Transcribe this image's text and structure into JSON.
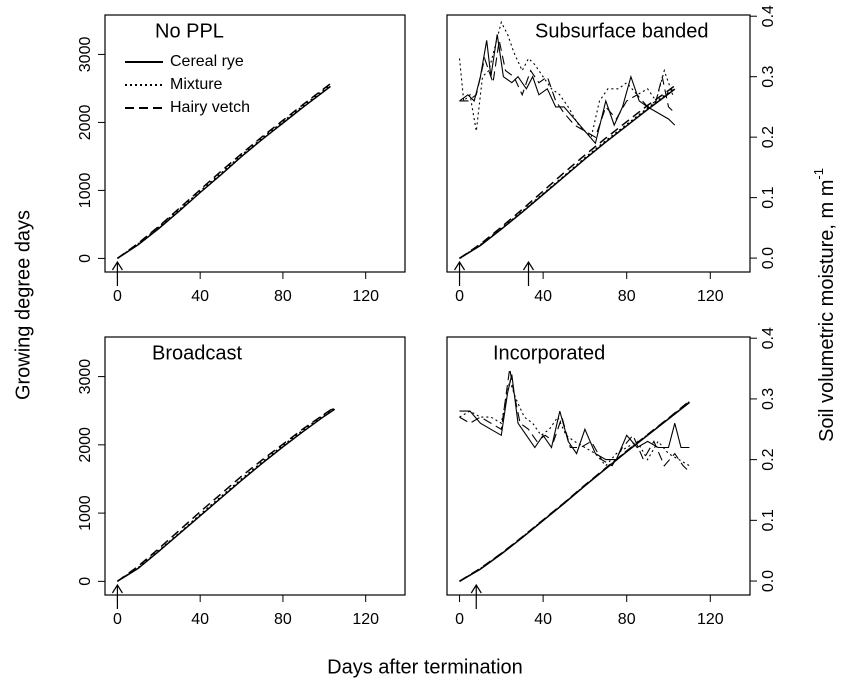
{
  "xlabel": "Days after termination",
  "ylabel": "Growing degree days",
  "y2label": "Soil volumetric moisture, m m",
  "y2label_superscript": "-1",
  "chart_data": [
    {
      "type": "line",
      "title": "No PPL",
      "legend": "top-left",
      "xlim": [
        -6,
        139
      ],
      "ylim": [
        -200,
        3580
      ],
      "xticks": [
        0,
        40,
        80,
        120
      ],
      "yticks": [
        0,
        1000,
        2000,
        3000
      ],
      "arrows": [
        0
      ],
      "series": [
        {
          "name": "Cereal rye",
          "dash": "solid",
          "color": "#000000",
          "x": [
            0,
            10,
            20,
            30,
            40,
            50,
            60,
            70,
            80,
            90,
            100,
            103
          ],
          "values": [
            0,
            200,
            440,
            700,
            970,
            1230,
            1500,
            1750,
            1990,
            2230,
            2460,
            2530
          ]
        },
        {
          "name": "Mixture",
          "dash": "dotted",
          "color": "#000000",
          "x": [
            0,
            10,
            20,
            30,
            40,
            50,
            60,
            70,
            80,
            90,
            100,
            103
          ],
          "values": [
            0,
            210,
            460,
            720,
            990,
            1250,
            1520,
            1770,
            2010,
            2250,
            2480,
            2550
          ]
        },
        {
          "name": "Hairy vetch",
          "dash": "dashed",
          "color": "#000000",
          "x": [
            0,
            10,
            20,
            30,
            40,
            50,
            60,
            70,
            80,
            90,
            100,
            103
          ],
          "values": [
            0,
            220,
            470,
            740,
            1010,
            1280,
            1540,
            1790,
            2030,
            2270,
            2500,
            2570
          ]
        }
      ]
    },
    {
      "type": "line",
      "title": "Subsurface banded",
      "xlim": [
        -6,
        139
      ],
      "ylim": [
        -200,
        3580
      ],
      "xticks": [
        0,
        40,
        80,
        120
      ],
      "y2lim": [
        -0.023,
        0.402
      ],
      "y2ticks": [
        {
          "value": 0,
          "label": "0.0"
        },
        0.1,
        0.2,
        0.3,
        0.4
      ],
      "arrows": [
        0,
        33
      ],
      "series": [
        {
          "name": "Cereal rye",
          "dash": "solid",
          "color": "#000000",
          "x": [
            0,
            10,
            20,
            30,
            40,
            50,
            60,
            70,
            80,
            90,
            100,
            103
          ],
          "values": [
            0,
            190,
            430,
            680,
            940,
            1200,
            1460,
            1710,
            1950,
            2190,
            2420,
            2490
          ]
        },
        {
          "name": "Mixture",
          "dash": "dotted",
          "color": "#000000",
          "x": [
            0,
            10,
            20,
            30,
            40,
            50,
            60,
            70,
            80,
            90,
            100,
            103
          ],
          "values": [
            0,
            200,
            440,
            690,
            950,
            1210,
            1480,
            1730,
            1970,
            2210,
            2440,
            2510
          ]
        },
        {
          "name": "Hairy vetch",
          "dash": "dashed",
          "color": "#000000",
          "x": [
            0,
            10,
            20,
            30,
            40,
            50,
            60,
            70,
            80,
            90,
            100,
            103
          ],
          "values": [
            0,
            210,
            460,
            720,
            990,
            1260,
            1520,
            1770,
            2010,
            2250,
            2470,
            2540
          ]
        },
        {
          "name": "Cereal rye",
          "dash": "solid",
          "color": "#000000",
          "axis": "y2",
          "x": [
            0,
            4,
            7,
            10,
            13,
            15,
            18,
            21,
            25,
            28,
            32,
            35,
            38,
            42,
            46,
            50,
            55,
            60,
            65,
            70,
            74,
            78,
            82,
            86,
            90,
            95,
            100,
            103
          ],
          "values": [
            0.26,
            0.27,
            0.26,
            0.3,
            0.36,
            0.3,
            0.37,
            0.3,
            0.29,
            0.3,
            0.28,
            0.3,
            0.27,
            0.28,
            0.25,
            0.25,
            0.23,
            0.21,
            0.19,
            0.26,
            0.22,
            0.25,
            0.3,
            0.26,
            0.25,
            0.24,
            0.23,
            0.22
          ]
        },
        {
          "name": "Mixture",
          "dash": "dotted",
          "color": "#000000",
          "axis": "y2",
          "x": [
            0,
            2,
            5,
            8,
            11,
            14,
            17,
            20,
            23,
            26,
            30,
            33,
            36,
            40,
            44,
            48,
            52,
            57,
            63,
            67,
            71,
            76,
            80,
            85,
            90,
            94,
            98,
            102
          ],
          "values": [
            0.33,
            0.26,
            0.27,
            0.21,
            0.3,
            0.31,
            0.35,
            0.39,
            0.37,
            0.34,
            0.31,
            0.33,
            0.32,
            0.3,
            0.28,
            0.27,
            0.25,
            0.22,
            0.2,
            0.26,
            0.28,
            0.28,
            0.29,
            0.27,
            0.28,
            0.26,
            0.31,
            0.27
          ]
        },
        {
          "name": "Hairy vetch",
          "dash": "dashed",
          "color": "#000000",
          "axis": "y2",
          "x": [
            0,
            4,
            8,
            12,
            16,
            19,
            22,
            26,
            30,
            34,
            38,
            42,
            46,
            50,
            55,
            60,
            65,
            70,
            75,
            80,
            85,
            90,
            94,
            97,
            100,
            103
          ],
          "values": [
            0.26,
            0.26,
            0.27,
            0.33,
            0.29,
            0.36,
            0.31,
            0.3,
            0.27,
            0.31,
            0.29,
            0.3,
            0.26,
            0.24,
            0.22,
            0.21,
            0.2,
            0.25,
            0.23,
            0.26,
            0.27,
            0.25,
            0.26,
            0.3,
            0.25,
            0.24
          ]
        }
      ]
    },
    {
      "type": "line",
      "title": "Broadcast",
      "xlim": [
        -6,
        139
      ],
      "ylim": [
        -200,
        3580
      ],
      "xticks": [
        0,
        40,
        80,
        120
      ],
      "yticks": [
        0,
        1000,
        2000,
        3000
      ],
      "arrows": [
        0
      ],
      "series": [
        {
          "name": "Cereal rye",
          "dash": "solid",
          "color": "#000000",
          "x": [
            0,
            10,
            20,
            30,
            40,
            50,
            60,
            70,
            80,
            90,
            100,
            105
          ],
          "values": [
            0,
            190,
            440,
            700,
            960,
            1220,
            1480,
            1730,
            1970,
            2200,
            2420,
            2520
          ]
        },
        {
          "name": "Mixture",
          "dash": "dotted",
          "color": "#000000",
          "x": [
            0,
            10,
            20,
            30,
            40,
            50,
            60,
            70,
            80,
            90,
            100,
            105
          ],
          "values": [
            0,
            200,
            450,
            710,
            980,
            1240,
            1500,
            1750,
            1990,
            2220,
            2440,
            2540
          ]
        },
        {
          "name": "Hairy vetch",
          "dash": "dashed",
          "color": "#000000",
          "x": [
            0,
            10,
            20,
            30,
            40,
            50,
            60,
            70,
            80,
            90,
            100,
            105
          ],
          "values": [
            0,
            220,
            480,
            750,
            1020,
            1280,
            1540,
            1780,
            2010,
            2240,
            2450,
            2550
          ]
        }
      ]
    },
    {
      "type": "line",
      "title": "Incorporated",
      "xlim": [
        -6,
        139
      ],
      "ylim": [
        -200,
        3580
      ],
      "xticks": [
        0,
        40,
        80,
        120
      ],
      "y2lim": [
        -0.023,
        0.402
      ],
      "y2ticks": [
        {
          "value": 0,
          "label": "0.0"
        },
        0.1,
        0.2,
        0.3,
        0.4
      ],
      "arrows": [
        8
      ],
      "series": [
        {
          "name": "Cereal rye",
          "dash": "solid",
          "color": "#000000",
          "x": [
            0,
            10,
            20,
            30,
            40,
            50,
            60,
            70,
            80,
            90,
            100,
            110
          ],
          "values": [
            0,
            180,
            400,
            640,
            890,
            1140,
            1400,
            1650,
            1900,
            2140,
            2380,
            2620
          ]
        },
        {
          "name": "Mixture",
          "dash": "dotted",
          "color": "#000000",
          "x": [
            0,
            10,
            20,
            30,
            40,
            50,
            60,
            70,
            80,
            90,
            100,
            110
          ],
          "values": [
            0,
            185,
            405,
            645,
            895,
            1145,
            1405,
            1655,
            1905,
            2145,
            2385,
            2630
          ]
        },
        {
          "name": "Hairy vetch",
          "dash": "dashed",
          "color": "#000000",
          "x": [
            0,
            10,
            20,
            30,
            40,
            50,
            60,
            70,
            80,
            90,
            100,
            110
          ],
          "values": [
            0,
            190,
            410,
            650,
            900,
            1150,
            1410,
            1660,
            1910,
            2150,
            2390,
            2640
          ]
        },
        {
          "name": "Cereal rye",
          "dash": "solid",
          "color": "#000000",
          "axis": "y2",
          "x": [
            0,
            5,
            10,
            15,
            20,
            23,
            25,
            28,
            32,
            36,
            40,
            44,
            48,
            52,
            56,
            60,
            65,
            70,
            75,
            80,
            85,
            90,
            95,
            100,
            103,
            106,
            110
          ],
          "values": [
            0.28,
            0.28,
            0.26,
            0.25,
            0.24,
            0.31,
            0.34,
            0.26,
            0.24,
            0.22,
            0.24,
            0.22,
            0.28,
            0.23,
            0.21,
            0.25,
            0.21,
            0.2,
            0.2,
            0.24,
            0.22,
            0.23,
            0.22,
            0.22,
            0.26,
            0.22,
            0.22
          ]
        },
        {
          "name": "Mixture",
          "dash": "dotted",
          "color": "#000000",
          "axis": "y2",
          "x": [
            0,
            5,
            10,
            15,
            20,
            24,
            27,
            31,
            35,
            39,
            43,
            47,
            51,
            55,
            60,
            65,
            70,
            75,
            80,
            85,
            90,
            95,
            100,
            105,
            110
          ],
          "values": [
            0.27,
            0.28,
            0.27,
            0.27,
            0.26,
            0.33,
            0.3,
            0.27,
            0.26,
            0.24,
            0.25,
            0.27,
            0.24,
            0.23,
            0.22,
            0.21,
            0.19,
            0.21,
            0.22,
            0.23,
            0.2,
            0.23,
            0.21,
            0.2,
            0.19
          ]
        },
        {
          "name": "Hairy vetch",
          "dash": "dashed",
          "color": "#000000",
          "axis": "y2",
          "x": [
            0,
            5,
            10,
            15,
            20,
            24,
            26,
            29,
            33,
            37,
            41,
            45,
            49,
            53,
            58,
            63,
            68,
            73,
            78,
            83,
            88,
            93,
            98,
            103,
            107,
            110
          ],
          "values": [
            0.27,
            0.26,
            0.27,
            0.26,
            0.25,
            0.35,
            0.31,
            0.26,
            0.25,
            0.23,
            0.24,
            0.23,
            0.27,
            0.22,
            0.22,
            0.23,
            0.2,
            0.19,
            0.22,
            0.24,
            0.2,
            0.23,
            0.19,
            0.21,
            0.19,
            0.18
          ]
        }
      ]
    }
  ]
}
